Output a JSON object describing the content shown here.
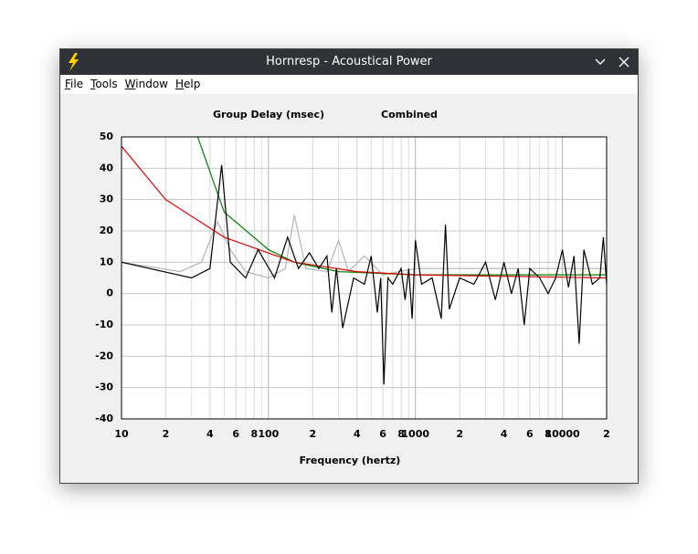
{
  "window": {
    "title": "Hornresp - Acoustical Power"
  },
  "menu": [
    "File",
    "Tools",
    "Window",
    "Help"
  ],
  "chart_data": {
    "type": "line",
    "title": "Group Delay (msec)",
    "subtitle": "Combined",
    "x_label": "Frequency (hertz)",
    "log_x": true,
    "grid": true,
    "xlim": [
      10,
      20000
    ],
    "ylim": [
      -40,
      50
    ],
    "yticks": [
      -40,
      -30,
      -20,
      -10,
      0,
      10,
      20,
      30,
      40,
      50
    ],
    "xticks": [
      {
        "value": 10,
        "label": "10"
      },
      {
        "value": 20,
        "label": "2"
      },
      {
        "value": 40,
        "label": "4"
      },
      {
        "value": 60,
        "label": "6"
      },
      {
        "value": 80,
        "label": "8"
      },
      {
        "value": 100,
        "label": "100"
      },
      {
        "value": 200,
        "label": "2"
      },
      {
        "value": 400,
        "label": "4"
      },
      {
        "value": 600,
        "label": "6"
      },
      {
        "value": 800,
        "label": "8"
      },
      {
        "value": 1000,
        "label": "1000"
      },
      {
        "value": 2000,
        "label": "2"
      },
      {
        "value": 4000,
        "label": "4"
      },
      {
        "value": 6000,
        "label": "6"
      },
      {
        "value": 8000,
        "label": "8"
      },
      {
        "value": 10000,
        "label": "10000"
      },
      {
        "value": 20000,
        "label": "2"
      }
    ],
    "minor_xticks": [
      30,
      50,
      70,
      90,
      300,
      500,
      700,
      900,
      3000,
      5000,
      7000,
      9000
    ],
    "series": [
      {
        "color": "#b4b4b4",
        "x": [
          10,
          25,
          35,
          45,
          55,
          70,
          100,
          130,
          150,
          180,
          250,
          300,
          350,
          450,
          600,
          1000,
          3000,
          20000
        ],
        "values": [
          10,
          7,
          10,
          23,
          14,
          7,
          5,
          8,
          25,
          8,
          7,
          17,
          7,
          12,
          6,
          8,
          8,
          8
        ]
      },
      {
        "color": "#008000",
        "x": [
          33,
          50,
          100,
          150,
          300,
          1000,
          20000
        ],
        "values": [
          50,
          26,
          14,
          10,
          7,
          6,
          6
        ]
      },
      {
        "color": "#e00000",
        "x": [
          10,
          20,
          50,
          150,
          400,
          1000,
          20000
        ],
        "values": [
          47,
          30,
          18,
          10,
          7,
          6,
          5
        ]
      },
      {
        "color": "#000000",
        "x": [
          10,
          30,
          40,
          48,
          55,
          70,
          85,
          110,
          135,
          160,
          190,
          220,
          250,
          270,
          290,
          320,
          380,
          450,
          500,
          550,
          580,
          610,
          650,
          700,
          800,
          850,
          900,
          950,
          1000,
          1100,
          1300,
          1500,
          1600,
          1700,
          2000,
          2500,
          3000,
          3500,
          4000,
          4500,
          5000,
          5500,
          6000,
          7000,
          8000,
          9000,
          10000,
          11000,
          12000,
          13000,
          14000,
          16000,
          18000,
          19000,
          20000
        ],
        "values": [
          10,
          5,
          8,
          41,
          10,
          5,
          14,
          5,
          18,
          8,
          13,
          8,
          12,
          -6,
          8,
          -11,
          5,
          3,
          12,
          -6,
          5,
          -29,
          5,
          3,
          8,
          -2,
          8,
          -8,
          17,
          3,
          5,
          -8,
          22,
          -5,
          5,
          3,
          10,
          -2,
          10,
          0,
          8,
          -10,
          8,
          5,
          0,
          5,
          14,
          2,
          12,
          -16,
          14,
          3,
          5,
          18,
          3
        ]
      }
    ]
  }
}
